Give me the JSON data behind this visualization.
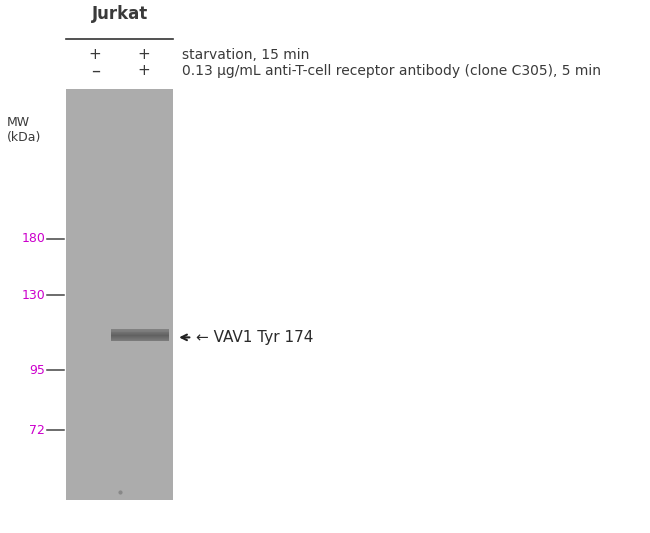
{
  "cell_line": "Jurkat",
  "row1_label": "starvation, 15 min",
  "row2_label": "0.13 μg/mL anti-T-cell receptor antibody (clone C305), 5 min",
  "col1_sign_r1": "+",
  "col2_sign_r1": "+",
  "col1_sign_r2": "–",
  "col2_sign_r2": "+",
  "mw_label": "MW\n(kDa)",
  "mw_marks": [
    180,
    130,
    95,
    72
  ],
  "band_label": "← VAV1 Tyr 174",
  "background_color": "#ffffff",
  "text_color": "#3a3a3a",
  "mw_color": "#cc00cc",
  "gel_gray": 0.675,
  "band_dark": 0.38,
  "band_label_color": "#2a2a2a"
}
